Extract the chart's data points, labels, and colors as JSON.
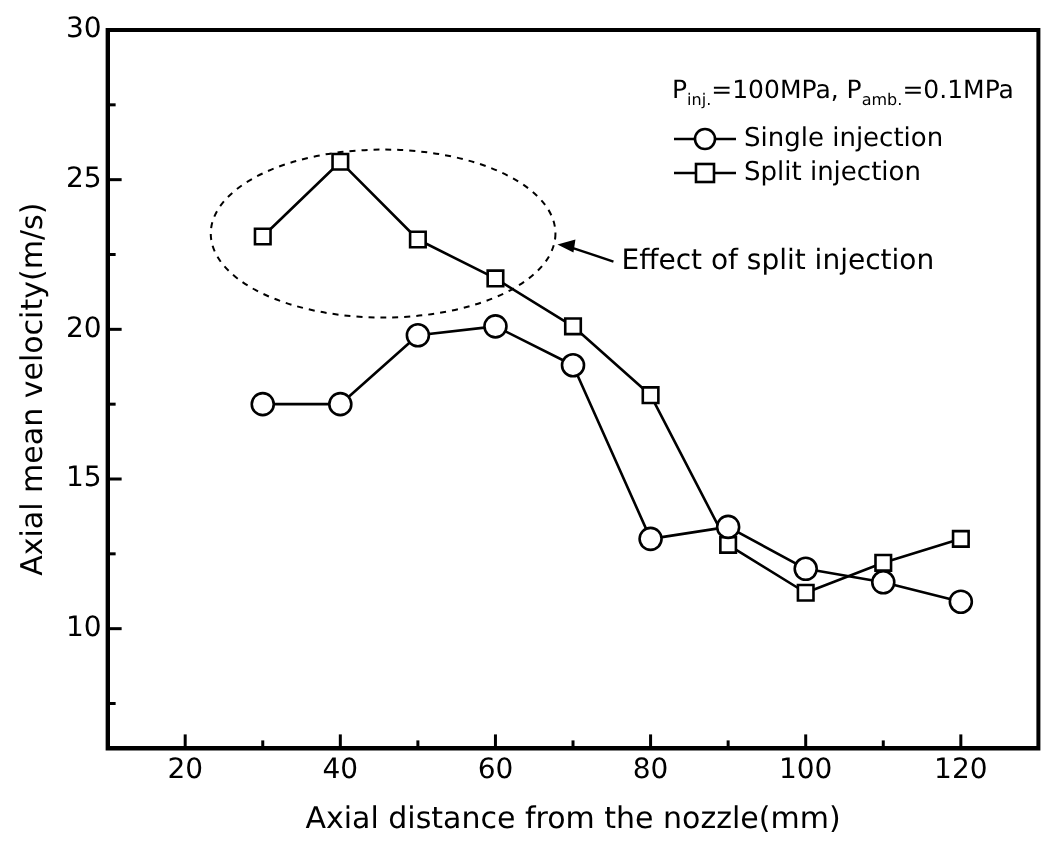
{
  "chart_data": {
    "type": "line",
    "xlabel": "Axial distance from the nozzle(mm)",
    "ylabel": "Axial mean velocity(m/s)",
    "legend_title": "P$_{inj.}$=100MPa, P$_{amb.}$=0.1MPa",
    "annotations": [
      "Effect of split injection"
    ],
    "x": [
      30,
      40,
      50,
      60,
      70,
      80,
      90,
      100,
      110,
      120
    ],
    "xlim": [
      10,
      130
    ],
    "xticks": [
      20,
      {
        "value": 30,
        "label": null
      },
      40,
      {
        "value": 50,
        "label": null
      },
      60,
      {
        "value": 70,
        "label": null
      },
      80,
      {
        "value": 90,
        "label": null
      },
      100,
      {
        "value": 110,
        "label": null
      },
      120
    ],
    "ylim": [
      6,
      30
    ],
    "yticks": [
      {
        "value": 7.5,
        "label": null
      },
      10,
      {
        "value": 12.5,
        "label": null
      },
      15,
      {
        "value": 17.5,
        "label": null
      },
      20,
      {
        "value": 22.5,
        "label": null
      },
      25,
      {
        "value": 27.5,
        "label": null
      },
      30
    ],
    "grid": false,
    "legend": "top right",
    "line_style": "solid",
    "series": [
      {
        "name": "Single injection",
        "color": "#000000",
        "marker": "circle",
        "values": [
          17.5,
          17.5,
          19.8,
          20.1,
          18.8,
          13.0,
          13.4,
          12.0,
          11.55,
          10.9
        ]
      },
      {
        "name": "Split injection",
        "color": "#000000",
        "marker": "square",
        "values": [
          23.1,
          25.6,
          23.0,
          21.7,
          20.1,
          17.8,
          12.8,
          11.2,
          12.2,
          13.0
        ]
      }
    ]
  }
}
